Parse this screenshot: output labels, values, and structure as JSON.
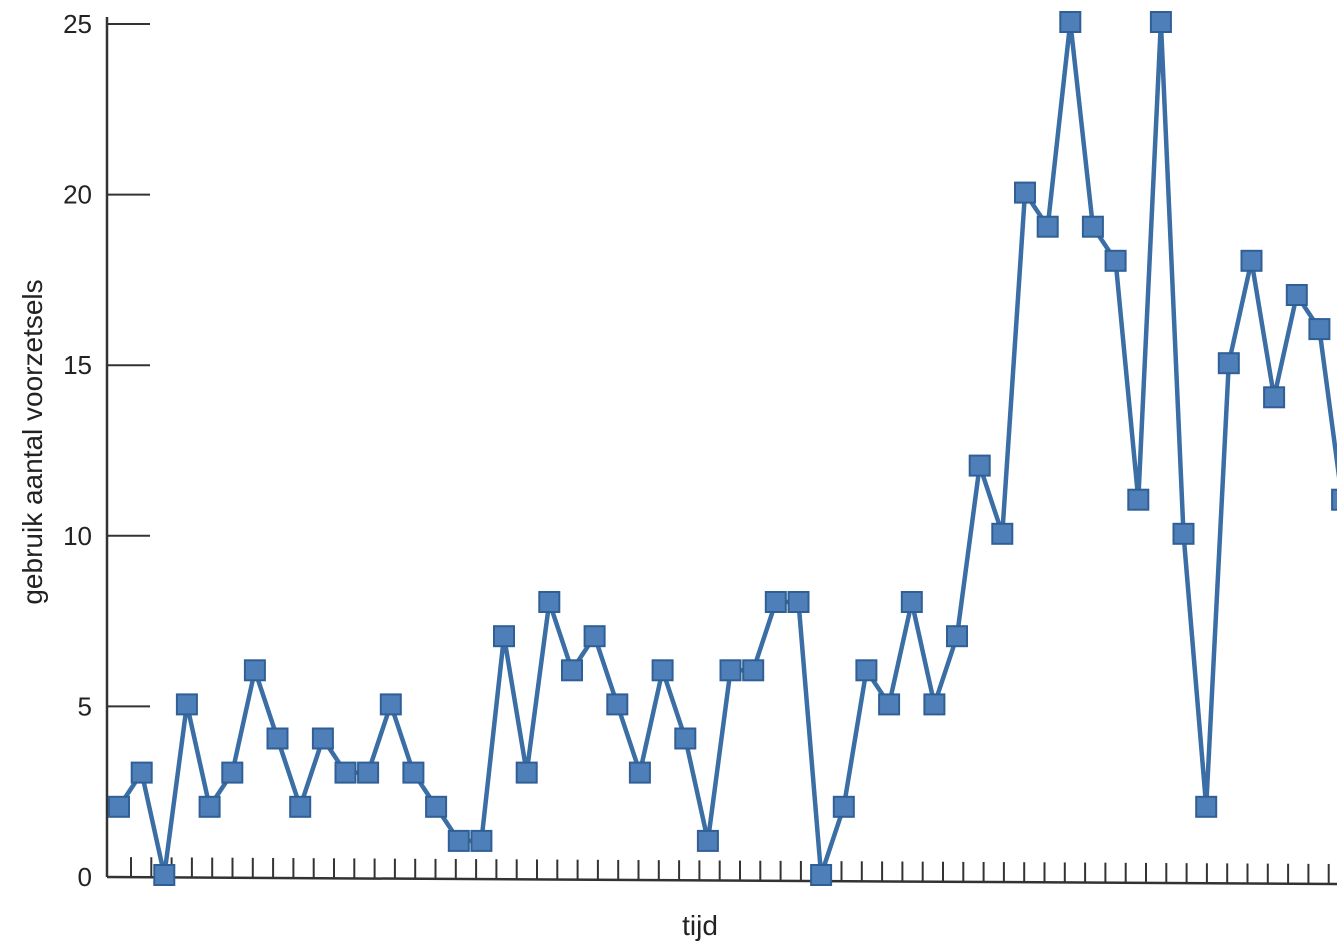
{
  "chart_data": {
    "type": "line",
    "title": "",
    "xlabel": "tijd",
    "ylabel": "gebruik aantal voorzetsels",
    "ylim": [
      0,
      25
    ],
    "yticks": [
      0,
      5,
      10,
      15,
      20,
      25
    ],
    "grid": false,
    "legend": "none",
    "series": [
      {
        "values": [
          2,
          3,
          0,
          5,
          2,
          3,
          6,
          4,
          2,
          4,
          3,
          3,
          5,
          3,
          2,
          1,
          1,
          7,
          3,
          8,
          6,
          7,
          5,
          3,
          6,
          4,
          1,
          6,
          6,
          8,
          8,
          0,
          2,
          6,
          5,
          8,
          5,
          7,
          12,
          10,
          20,
          19,
          25,
          19,
          18,
          11,
          25,
          10,
          2,
          15,
          18,
          14,
          17,
          16,
          11
        ]
      }
    ],
    "colors": {
      "line": "#3a6ea5",
      "marker_fill": "#4f7fb8",
      "marker_stroke": "#2f5f95",
      "axis": "#333333"
    }
  }
}
